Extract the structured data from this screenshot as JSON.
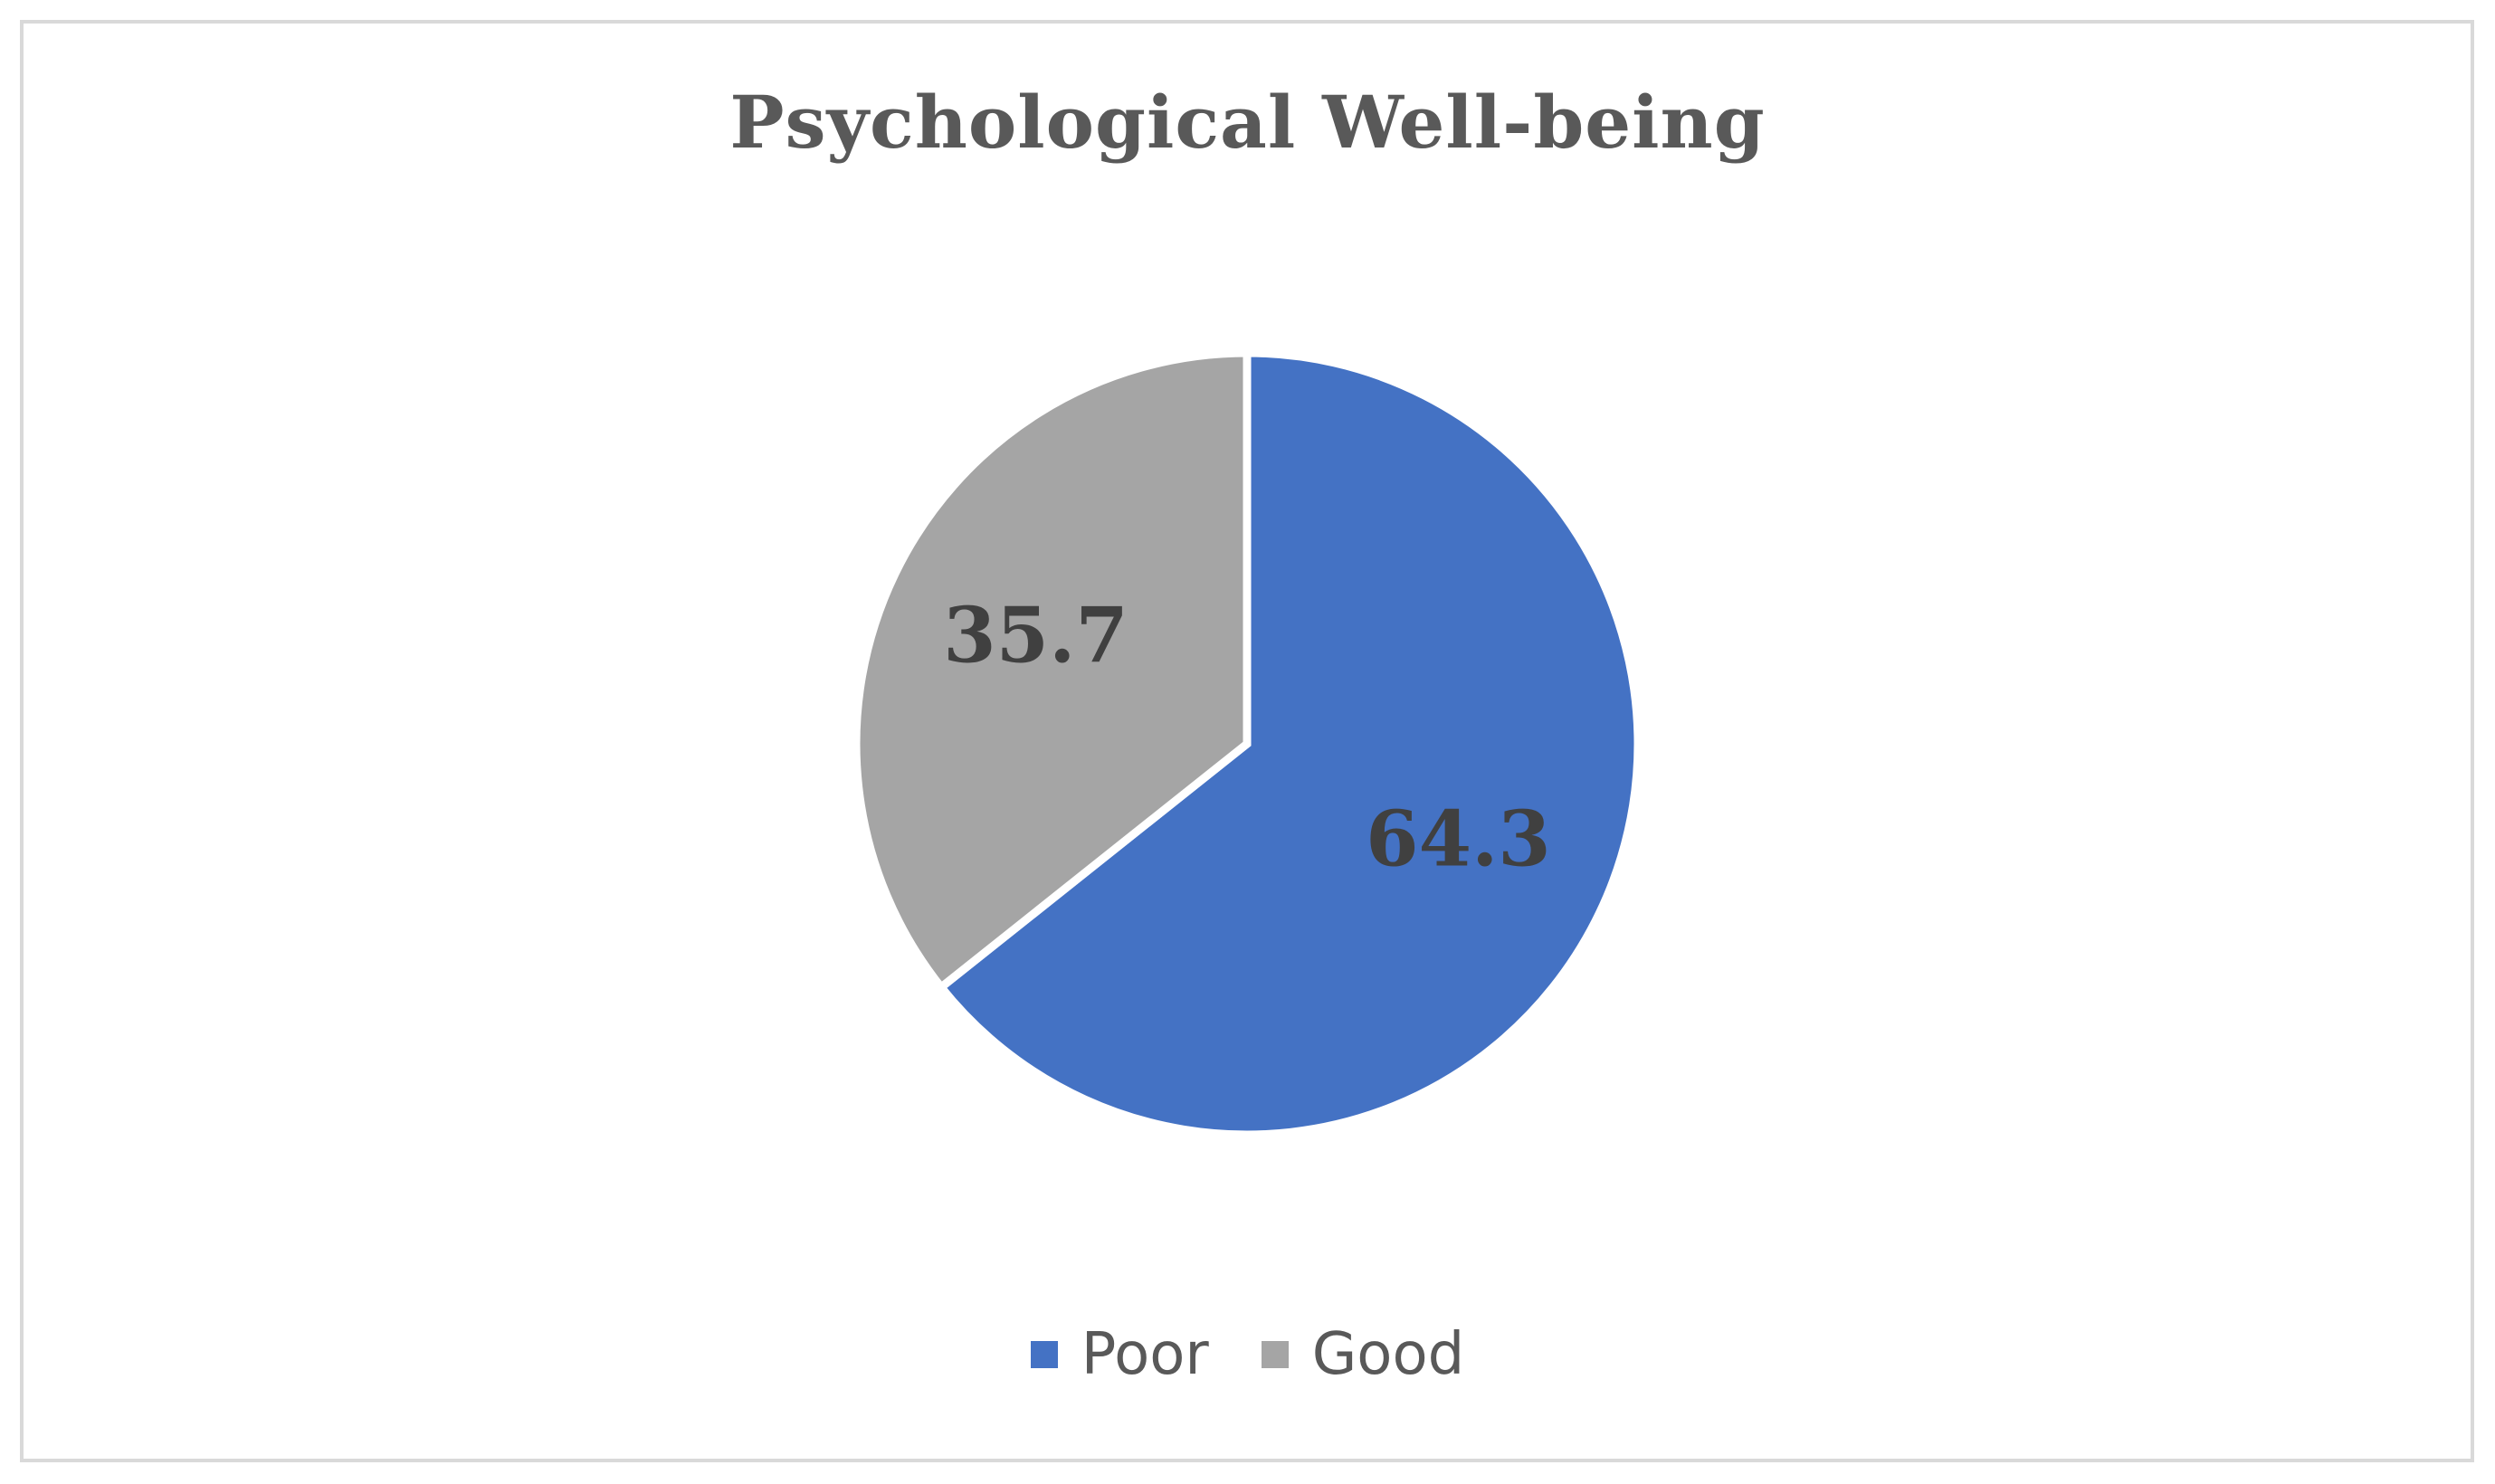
{
  "chart_data": {
    "type": "pie",
    "title": "Psychological Well-being",
    "categories": [
      "Poor",
      "Good"
    ],
    "values": [
      64.3,
      35.7
    ],
    "colors": [
      "#4472C4",
      "#A5A5A5"
    ],
    "data_labels": [
      "64.3",
      "35.7"
    ],
    "legend": {
      "position": "bottom",
      "entries": [
        "Poor",
        "Good"
      ]
    }
  }
}
